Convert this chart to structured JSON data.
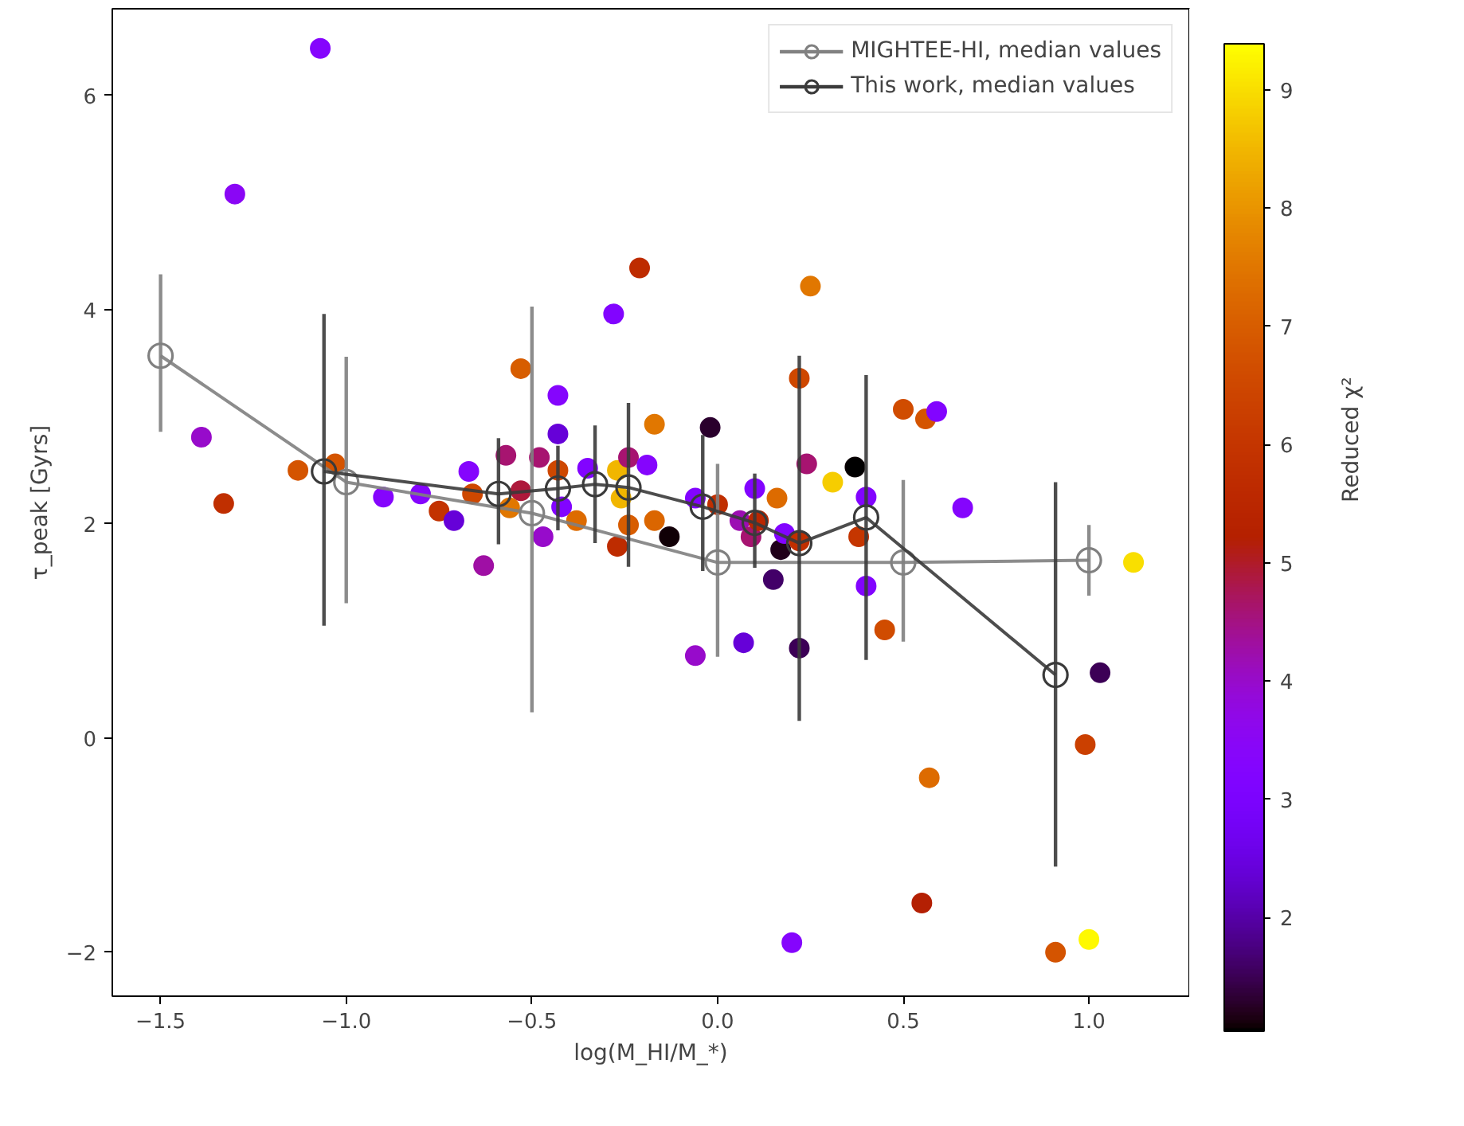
{
  "chart_data": {
    "type": "scatter",
    "xlabel": "log(M_HI/M_*)",
    "ylabel": "τ_peak [Gyrs]",
    "clabel": "Reduced χ²",
    "xlim": [
      -1.63,
      1.27
    ],
    "ylim": [
      -2.41,
      6.81
    ],
    "xticks": [
      {
        "value": -1.5,
        "label": "−1.5"
      },
      {
        "value": -1.0,
        "label": "−1.0"
      },
      {
        "value": -0.5,
        "label": "−0.5"
      },
      "0.0",
      {
        "value": 0.5,
        "label": "0.5"
      },
      {
        "value": 1.0,
        "label": "1.0"
      }
    ],
    "yticks": [
      {
        "value": -2,
        "label": "−2"
      },
      0,
      2,
      4,
      6
    ],
    "clim": [
      1.04,
      9.39
    ],
    "cticks": [
      2,
      3,
      4,
      5,
      6,
      7,
      8,
      9
    ],
    "grid": false,
    "legend": "top right",
    "series": [
      {
        "marker": "circle",
        "colors": [
          "#8505fd",
          "#8a07f5",
          "#980bc9",
          "#c02f00",
          "#d45400",
          "#d45400",
          "#8505fd",
          "#8505fd",
          "#c23200",
          "#6701d9",
          "#8505fd",
          "#ce4700",
          "#9f0fa2",
          "#a61472",
          "#a61472",
          "#ad193c",
          "#e07600",
          "#d75c00",
          "#ce4700",
          "#8204fe",
          "#dd6b00",
          "#980bc9",
          "#8204fe",
          "#f1b600",
          "#a61472",
          "#f1b600",
          "#d75c00",
          "#be2c00",
          "#8505fd",
          "#db6600",
          "#be2c00",
          "#e07600",
          "#8204fe",
          "#8505fd",
          "#6701d9",
          "#e07600",
          "#2d0031",
          "#ce4700",
          "#d04b00",
          "#d45400",
          "#8204fe",
          "#a61472",
          "#f6cc00",
          "#090002",
          "#8204fe",
          "#dd6b00",
          "#16000b",
          "#8204fe",
          "#c02f00",
          "#9d0eb0",
          "#a61472",
          "#420068",
          "#23001f",
          "#8204fe",
          "#c02f00",
          "#980bc9",
          "#6701d9",
          "#3c0056",
          "#c43500",
          "#8204fe",
          "#8204fe",
          "#d04b00",
          "#8505fd",
          "#f9dd00",
          "#3c0056",
          "#ca4000",
          "#dd6b00",
          "#b41f03",
          "#8505fd",
          "#d45400",
          "#fef700",
          "#ba2700"
        ],
        "x": [
          -1.07,
          -1.3,
          -1.39,
          -1.33,
          -1.13,
          -1.03,
          -0.9,
          -0.8,
          -0.75,
          -0.71,
          -0.67,
          -0.66,
          -0.63,
          -0.57,
          -0.48,
          -0.53,
          -0.56,
          -0.53,
          -0.43,
          -0.42,
          -0.38,
          -0.47,
          -0.35,
          -0.27,
          -0.24,
          -0.26,
          -0.24,
          -0.27,
          -0.19,
          -0.17,
          -0.21,
          0.25,
          -0.28,
          -0.43,
          -0.43,
          -0.17,
          -0.02,
          0.22,
          0.5,
          0.56,
          0.59,
          0.24,
          0.31,
          0.37,
          0.1,
          0.16,
          -0.13,
          -0.06,
          0.0,
          0.06,
          0.09,
          0.15,
          0.17,
          0.18,
          0.22,
          -0.06,
          0.07,
          0.22,
          0.38,
          0.4,
          0.4,
          0.45,
          0.66,
          1.12,
          1.03,
          0.99,
          0.57,
          0.55,
          0.2,
          0.91,
          1.0,
          0.11
        ],
        "values": [
          6.44,
          5.08,
          2.81,
          2.19,
          2.5,
          2.56,
          2.25,
          2.28,
          2.12,
          2.03,
          2.49,
          2.28,
          1.61,
          2.64,
          2.62,
          2.31,
          2.15,
          3.45,
          2.5,
          2.16,
          2.03,
          1.88,
          2.52,
          2.5,
          2.62,
          2.24,
          1.99,
          1.79,
          2.55,
          2.03,
          4.39,
          4.22,
          3.96,
          3.2,
          2.84,
          2.93,
          2.9,
          3.36,
          3.07,
          2.98,
          3.05,
          2.56,
          2.39,
          2.53,
          2.33,
          2.24,
          1.88,
          2.24,
          2.18,
          2.03,
          1.88,
          1.48,
          1.76,
          1.91,
          1.84,
          0.77,
          0.89,
          0.84,
          1.88,
          2.25,
          1.42,
          1.01,
          2.15,
          1.64,
          0.61,
          -0.06,
          -0.37,
          -1.54,
          -1.91,
          -2.0,
          -1.88,
          2.03
        ],
        "cvalues": [
          3.3,
          3.5,
          4.0,
          5.8,
          6.8,
          6.8,
          3.3,
          3.3,
          5.9,
          2.4,
          3.3,
          6.5,
          4.3,
          4.6,
          4.6,
          4.9,
          7.5,
          7.0,
          6.5,
          3.2,
          7.3,
          4.0,
          3.2,
          8.5,
          4.6,
          8.5,
          7.0,
          5.7,
          3.3,
          7.2,
          5.7,
          7.5,
          3.2,
          3.3,
          2.4,
          7.5,
          1.3,
          6.5,
          6.6,
          6.8,
          3.2,
          4.6,
          8.8,
          1.05,
          3.2,
          7.3,
          1.1,
          3.2,
          5.8,
          4.2,
          4.6,
          1.6,
          1.2,
          3.2,
          5.8,
          4.0,
          2.4,
          1.5,
          6.0,
          3.2,
          3.2,
          6.6,
          3.3,
          9.0,
          1.5,
          6.3,
          7.3,
          5.2,
          3.3,
          6.8,
          9.3,
          5.5
        ]
      },
      {
        "type": "line",
        "name": "MIGHTEE-HI, median values",
        "color": "#808080",
        "marker": "circle",
        "line_style": "solid",
        "x": [
          -1.5,
          -1.0,
          -0.5,
          0.0,
          0.5,
          1.0
        ],
        "values": [
          3.57,
          2.39,
          2.1,
          1.64,
          1.64,
          1.66
        ],
        "errors": [
          [
            2.86,
            4.33
          ],
          [
            1.26,
            3.56
          ],
          [
            0.24,
            4.03
          ],
          [
            0.76,
            2.56
          ],
          [
            0.9,
            2.41
          ],
          [
            1.33,
            1.99
          ]
        ]
      },
      {
        "type": "line",
        "name": "This work, median values",
        "color": "#3a3a3a",
        "marker": "circle",
        "line_style": "solid",
        "x": [
          -1.06,
          -0.59,
          -0.43,
          -0.33,
          -0.24,
          -0.04,
          0.1,
          0.22,
          0.4,
          0.91
        ],
        "values": [
          2.49,
          2.28,
          2.33,
          2.37,
          2.34,
          2.16,
          2.01,
          1.82,
          2.06,
          0.59
        ],
        "errors": [
          [
            1.05,
            3.96
          ],
          [
            1.81,
            2.8
          ],
          [
            1.94,
            2.73
          ],
          [
            1.82,
            2.92
          ],
          [
            1.6,
            3.13
          ],
          [
            1.56,
            2.83
          ],
          [
            1.59,
            2.47
          ],
          [
            0.16,
            3.57
          ],
          [
            0.73,
            3.39
          ],
          [
            -1.2,
            2.39
          ]
        ]
      }
    ]
  }
}
